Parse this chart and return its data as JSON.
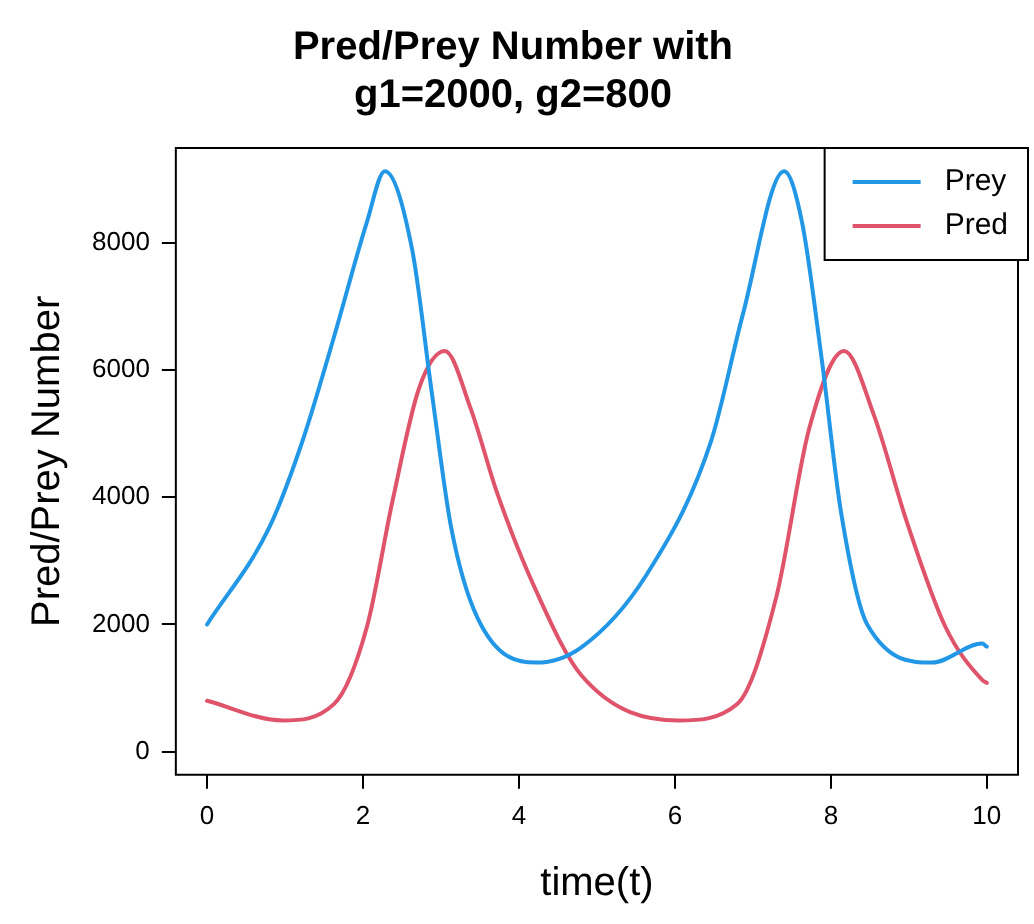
{
  "chart_data": {
    "type": "line",
    "title": "Pred/Prey Number with\ng1=2000, g2=800",
    "xlabel": "time(t)",
    "ylabel": "Pred/Prey Number",
    "xlim": [
      -0.4,
      10.4
    ],
    "xticks": [
      0,
      2,
      4,
      6,
      8,
      10
    ],
    "ylim": [
      -365,
      9495
    ],
    "yticks": [
      0,
      2000,
      4000,
      6000,
      8000
    ],
    "grid": false,
    "legend": "top right",
    "marker": "none",
    "line_style": "solid",
    "series": [
      {
        "name": "Prey",
        "color": "#2297e6",
        "x": [
          0,
          0.8,
          1.22,
          1.63,
          2.05,
          2.28,
          2.63,
          2.88,
          3.13,
          3.47,
          4.22,
          4.8,
          5.63,
          6.46,
          6.87,
          7.4,
          7.63,
          7.88,
          8.13,
          8.47,
          9.3,
          9.94,
          10
        ],
        "values": [
          2000,
          3530,
          4870,
          6530,
          8330,
          9130,
          7900,
          5670,
          3530,
          2100,
          1400,
          1640,
          2770,
          4870,
          6870,
          9130,
          8330,
          6200,
          3770,
          1990,
          1400,
          1700,
          1650
        ]
      },
      {
        "name": "Pred",
        "color": "#df536b",
        "x": [
          0,
          0.97,
          1.63,
          2.05,
          2.38,
          2.72,
          3.05,
          3.38,
          3.72,
          4.22,
          4.8,
          6.05,
          6.8,
          7.3,
          7.72,
          8.17,
          8.55,
          8.97,
          9.47,
          9.94,
          10
        ],
        "values": [
          800,
          490,
          750,
          1960,
          3950,
          5720,
          6300,
          5400,
          4070,
          2530,
          1200,
          490,
          750,
          2430,
          5070,
          6300,
          5300,
          3630,
          1960,
          1130,
          1080
        ]
      }
    ]
  }
}
